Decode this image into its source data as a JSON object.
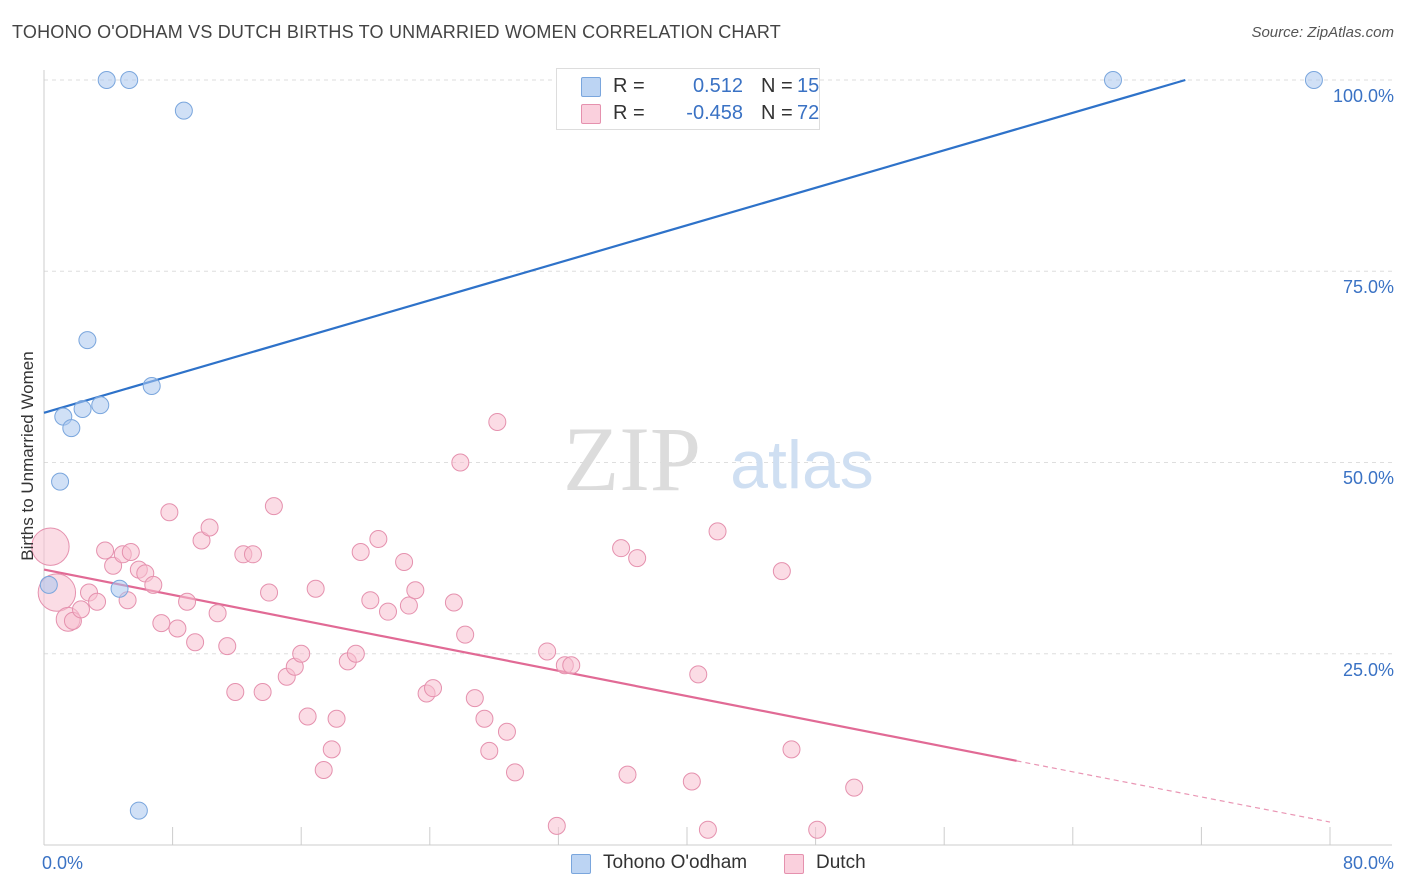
{
  "title": "TOHONO O'ODHAM VS DUTCH BIRTHS TO UNMARRIED WOMEN CORRELATION CHART",
  "source": "Source: ZipAtlas.com",
  "watermark": {
    "zip": "ZIP",
    "atlas": "atlas"
  },
  "legend": {
    "r_label": "R =",
    "n_label": "N =",
    "entries": [
      {
        "r": "0.512",
        "n": "15"
      },
      {
        "r": "-0.458",
        "n": "72"
      }
    ]
  },
  "chart_data": {
    "type": "scatter",
    "title": "TOHONO O'ODHAM VS DUTCH BIRTHS TO UNMARRIED WOMEN CORRELATION CHART",
    "xlabel": "",
    "ylabel": "Births to Unmarried Women",
    "xlim": [
      0,
      80
    ],
    "ylim": [
      0,
      102
    ],
    "x_tick_labels": [
      "0.0%",
      "80.0%"
    ],
    "y_ticks": [
      25,
      50,
      75,
      100
    ],
    "y_tick_labels": [
      "25.0%",
      "50.0%",
      "75.0%",
      "100.0%"
    ],
    "grid": true,
    "legend_position": "top-center",
    "series": [
      {
        "name": "Tohono O'odham",
        "color": "#a9c6ee",
        "edge": "#7aa6dd",
        "line_color": "#2e72c9",
        "r": 0.512,
        "n": 15,
        "trend": {
          "x0": 0,
          "y0": 56.5,
          "x1": 71,
          "y1": 100
        },
        "points": [
          {
            "x": 0.3,
            "y": 34.0,
            "s": 1
          },
          {
            "x": 1.0,
            "y": 47.5,
            "s": 1
          },
          {
            "x": 1.2,
            "y": 56.0,
            "s": 1
          },
          {
            "x": 1.7,
            "y": 54.5,
            "s": 1
          },
          {
            "x": 2.4,
            "y": 57.0,
            "s": 1
          },
          {
            "x": 2.7,
            "y": 66.0,
            "s": 1
          },
          {
            "x": 3.5,
            "y": 57.5,
            "s": 1
          },
          {
            "x": 3.9,
            "y": 100.0,
            "s": 1
          },
          {
            "x": 5.3,
            "y": 100.0,
            "s": 1
          },
          {
            "x": 4.7,
            "y": 33.5,
            "s": 1
          },
          {
            "x": 5.9,
            "y": 4.5,
            "s": 1
          },
          {
            "x": 6.7,
            "y": 60.0,
            "s": 1
          },
          {
            "x": 8.7,
            "y": 96.0,
            "s": 1
          },
          {
            "x": 66.5,
            "y": 100.0,
            "s": 1
          },
          {
            "x": 79.0,
            "y": 100.0,
            "s": 1
          }
        ]
      },
      {
        "name": "Dutch",
        "color": "#f7bfd0",
        "edge": "#e591ae",
        "line_color": "#e16a95",
        "r": -0.458,
        "n": 72,
        "trend": {
          "x0": 0,
          "y0": 36.0,
          "x1": 60.5,
          "y1": 11.0
        },
        "trend_dashed": {
          "x0": 60.5,
          "y0": 11.0,
          "x1": 80,
          "y1": 3.0
        },
        "points": [
          {
            "x": 0.4,
            "y": 39.0,
            "s": 2.2
          },
          {
            "x": 0.8,
            "y": 33.0,
            "s": 2.2
          },
          {
            "x": 1.5,
            "y": 29.5,
            "s": 1.4
          },
          {
            "x": 1.8,
            "y": 29.3,
            "s": 1
          },
          {
            "x": 2.3,
            "y": 30.8,
            "s": 1
          },
          {
            "x": 2.8,
            "y": 33.0,
            "s": 1
          },
          {
            "x": 3.3,
            "y": 31.8,
            "s": 1
          },
          {
            "x": 3.8,
            "y": 38.5,
            "s": 1
          },
          {
            "x": 4.3,
            "y": 36.5,
            "s": 1
          },
          {
            "x": 4.9,
            "y": 38.0,
            "s": 1
          },
          {
            "x": 5.2,
            "y": 32.0,
            "s": 1
          },
          {
            "x": 5.4,
            "y": 38.3,
            "s": 1
          },
          {
            "x": 5.9,
            "y": 36.0,
            "s": 1
          },
          {
            "x": 6.3,
            "y": 35.5,
            "s": 1
          },
          {
            "x": 6.8,
            "y": 34.0,
            "s": 1
          },
          {
            "x": 7.3,
            "y": 29.0,
            "s": 1
          },
          {
            "x": 7.8,
            "y": 43.5,
            "s": 1
          },
          {
            "x": 8.3,
            "y": 28.3,
            "s": 1
          },
          {
            "x": 8.9,
            "y": 31.8,
            "s": 1
          },
          {
            "x": 9.4,
            "y": 26.5,
            "s": 1
          },
          {
            "x": 9.8,
            "y": 39.8,
            "s": 1
          },
          {
            "x": 10.3,
            "y": 41.5,
            "s": 1
          },
          {
            "x": 10.8,
            "y": 30.3,
            "s": 1
          },
          {
            "x": 11.4,
            "y": 26.0,
            "s": 1
          },
          {
            "x": 11.9,
            "y": 20.0,
            "s": 1
          },
          {
            "x": 12.4,
            "y": 38.0,
            "s": 1
          },
          {
            "x": 13.0,
            "y": 38.0,
            "s": 1
          },
          {
            "x": 13.6,
            "y": 20.0,
            "s": 1
          },
          {
            "x": 14.0,
            "y": 33.0,
            "s": 1
          },
          {
            "x": 14.3,
            "y": 44.3,
            "s": 1
          },
          {
            "x": 15.1,
            "y": 22.0,
            "s": 1
          },
          {
            "x": 15.6,
            "y": 23.3,
            "s": 1
          },
          {
            "x": 16.0,
            "y": 25.0,
            "s": 1
          },
          {
            "x": 16.4,
            "y": 16.8,
            "s": 1
          },
          {
            "x": 16.9,
            "y": 33.5,
            "s": 1
          },
          {
            "x": 17.4,
            "y": 9.8,
            "s": 1
          },
          {
            "x": 17.9,
            "y": 12.5,
            "s": 1
          },
          {
            "x": 18.2,
            "y": 16.5,
            "s": 1
          },
          {
            "x": 18.9,
            "y": 24.0,
            "s": 1
          },
          {
            "x": 19.4,
            "y": 25.0,
            "s": 1
          },
          {
            "x": 19.7,
            "y": 38.3,
            "s": 1
          },
          {
            "x": 20.3,
            "y": 32.0,
            "s": 1
          },
          {
            "x": 20.8,
            "y": 40.0,
            "s": 1
          },
          {
            "x": 21.4,
            "y": 30.5,
            "s": 1
          },
          {
            "x": 22.4,
            "y": 37.0,
            "s": 1
          },
          {
            "x": 22.7,
            "y": 31.3,
            "s": 1
          },
          {
            "x": 23.1,
            "y": 33.3,
            "s": 1
          },
          {
            "x": 23.8,
            "y": 19.8,
            "s": 1
          },
          {
            "x": 24.2,
            "y": 20.5,
            "s": 1
          },
          {
            "x": 25.5,
            "y": 31.7,
            "s": 1
          },
          {
            "x": 25.9,
            "y": 50.0,
            "s": 1
          },
          {
            "x": 26.2,
            "y": 27.5,
            "s": 1
          },
          {
            "x": 26.8,
            "y": 19.2,
            "s": 1
          },
          {
            "x": 27.4,
            "y": 16.5,
            "s": 1
          },
          {
            "x": 27.7,
            "y": 12.3,
            "s": 1
          },
          {
            "x": 28.2,
            "y": 55.3,
            "s": 1
          },
          {
            "x": 28.8,
            "y": 14.8,
            "s": 1
          },
          {
            "x": 29.3,
            "y": 9.5,
            "s": 1
          },
          {
            "x": 31.3,
            "y": 25.3,
            "s": 1
          },
          {
            "x": 31.9,
            "y": 2.5,
            "s": 1
          },
          {
            "x": 32.4,
            "y": 23.5,
            "s": 1
          },
          {
            "x": 32.8,
            "y": 23.5,
            "s": 1
          },
          {
            "x": 35.9,
            "y": 38.8,
            "s": 1
          },
          {
            "x": 36.3,
            "y": 9.2,
            "s": 1
          },
          {
            "x": 36.9,
            "y": 37.5,
            "s": 1
          },
          {
            "x": 40.3,
            "y": 8.3,
            "s": 1
          },
          {
            "x": 40.7,
            "y": 22.3,
            "s": 1
          },
          {
            "x": 41.3,
            "y": 2.0,
            "s": 1
          },
          {
            "x": 41.9,
            "y": 41.0,
            "s": 1
          },
          {
            "x": 45.9,
            "y": 35.8,
            "s": 1
          },
          {
            "x": 46.5,
            "y": 12.5,
            "s": 1
          },
          {
            "x": 48.1,
            "y": 2.0,
            "s": 1
          },
          {
            "x": 50.4,
            "y": 7.5,
            "s": 1
          }
        ]
      }
    ]
  }
}
